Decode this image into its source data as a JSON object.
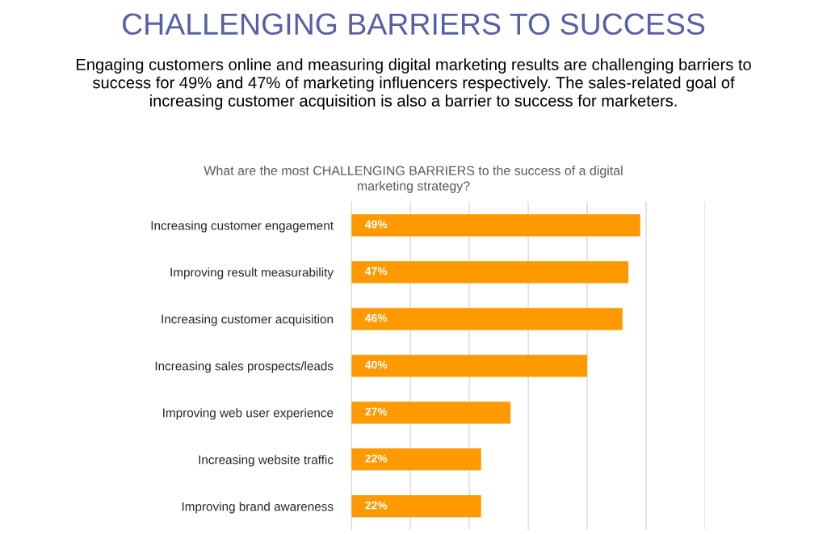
{
  "chart_data": {
    "type": "bar",
    "orientation": "horizontal",
    "title": "CHALLENGING BARRIERS TO SUCCESS",
    "subtitle": "Engaging customers online and measuring digital marketing results are challenging barriers to\nsuccess for 49% and 47% of marketing influencers respectively. The sales-related goal of\nincreasing customer acquisition is also a barrier to success for marketers.",
    "annotations": [
      "What are the most CHALLENGING BARRIERS to the success of a digital\nmarketing strategy?"
    ],
    "categories": [
      "Increasing customer engagement",
      "Improving result measurability",
      "Increasing customer acquisition",
      "Increasing sales prospects/leads",
      "Improving web user experience",
      "Increasing website traffic",
      "Improving brand awareness"
    ],
    "values": [
      49,
      47,
      46,
      40,
      27,
      22,
      22
    ],
    "value_labels": [
      "49%",
      "47%",
      "46%",
      "40%",
      "27%",
      "22%",
      "22%"
    ],
    "color": "#ff9900",
    "xlim": [
      0,
      60
    ],
    "xticks": [
      {
        "value": 0,
        "label": null
      },
      {
        "value": 10,
        "label": null
      },
      {
        "value": 20,
        "label": null
      },
      {
        "value": 30,
        "label": null
      },
      {
        "value": 40,
        "label": null
      },
      {
        "value": 50,
        "label": null
      },
      {
        "value": 60,
        "label": null
      }
    ],
    "grid": "x",
    "tick_labels": "y",
    "legend": false
  }
}
